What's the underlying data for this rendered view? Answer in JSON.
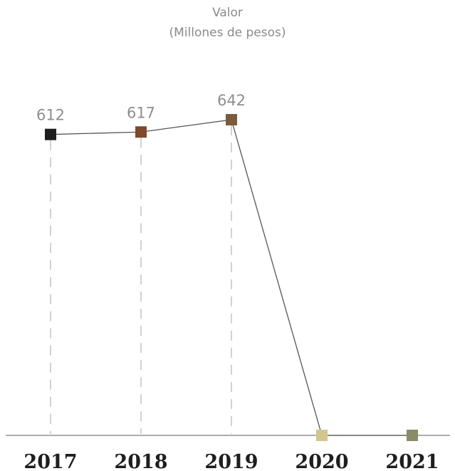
{
  "chart_data": {
    "type": "line",
    "title": "Valor",
    "subtitle": "(Millones de pesos)",
    "xlabel": "",
    "ylabel": "",
    "categories": [
      "2017",
      "2018",
      "2019",
      "2020",
      "2021"
    ],
    "values": [
      612,
      617,
      642,
      0,
      0
    ],
    "data_labels": [
      "612",
      "617",
      "642",
      "",
      ""
    ],
    "ylim": [
      0,
      642
    ],
    "grid": false,
    "legend": "none",
    "marker_colors": [
      "#1f1d1e",
      "#7e4a2b",
      "#7c5b3d",
      "#d2c690",
      "#8a8b68"
    ],
    "line_color": "#555555",
    "dash_color": "#b5b5b5",
    "axis_color": "#7a7a7a"
  }
}
